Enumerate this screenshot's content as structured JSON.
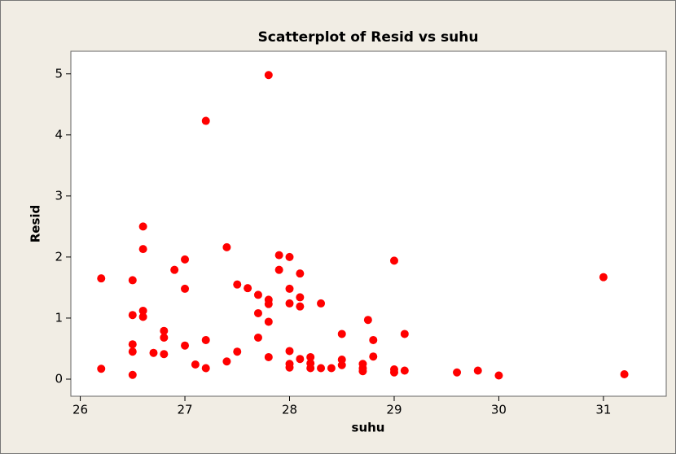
{
  "chart_data": {
    "type": "scatter",
    "title": "Scatterplot of Resid vs suhu",
    "x_label": "suhu",
    "y_label": "Resid",
    "color": "#ff0000",
    "xlim": [
      25.91,
      31.6
    ],
    "ylim": [
      -0.28,
      5.37
    ],
    "xticks": [
      26,
      27,
      28,
      29,
      30,
      31
    ],
    "yticks": [
      0,
      1,
      2,
      3,
      4,
      5
    ],
    "x": [
      26.2,
      26.2,
      26.5,
      26.5,
      26.5,
      26.5,
      26.5,
      26.6,
      26.6,
      26.6,
      26.6,
      26.7,
      26.8,
      26.8,
      26.8,
      26.9,
      27.0,
      27.0,
      27.0,
      27.1,
      27.2,
      27.2,
      27.2,
      27.4,
      27.4,
      27.5,
      27.5,
      27.6,
      27.7,
      27.7,
      27.7,
      27.8,
      27.8,
      27.8,
      27.8,
      27.8,
      27.9,
      27.9,
      28.0,
      28.0,
      28.0,
      28.0,
      28.0,
      28.0,
      28.1,
      28.1,
      28.1,
      28.1,
      28.2,
      28.2,
      28.2,
      28.3,
      28.3,
      28.4,
      28.5,
      28.5,
      28.5,
      28.7,
      28.7,
      28.7,
      28.75,
      28.8,
      28.8,
      29.0,
      29.0,
      29.0,
      29.1,
      29.1,
      29.6,
      29.8,
      30.0,
      31.0,
      31.2
    ],
    "values": [
      0.17,
      1.65,
      0.07,
      1.62,
      1.05,
      0.57,
      0.45,
      2.5,
      2.13,
      1.12,
      1.02,
      0.43,
      0.79,
      0.68,
      0.41,
      1.79,
      1.96,
      1.48,
      0.55,
      0.24,
      4.23,
      0.64,
      0.18,
      2.16,
      0.29,
      1.55,
      0.45,
      1.49,
      1.38,
      1.08,
      0.68,
      4.98,
      1.3,
      1.23,
      0.94,
      0.36,
      2.03,
      1.79,
      2.0,
      1.48,
      1.24,
      0.46,
      0.25,
      0.19,
      1.73,
      1.34,
      1.19,
      0.33,
      0.36,
      0.26,
      0.18,
      1.24,
      0.18,
      0.18,
      0.74,
      0.32,
      0.23,
      0.25,
      0.18,
      0.13,
      0.97,
      0.64,
      0.37,
      1.94,
      0.16,
      0.11,
      0.14,
      0.74,
      0.11,
      0.14,
      0.06,
      1.67,
      0.08
    ]
  }
}
